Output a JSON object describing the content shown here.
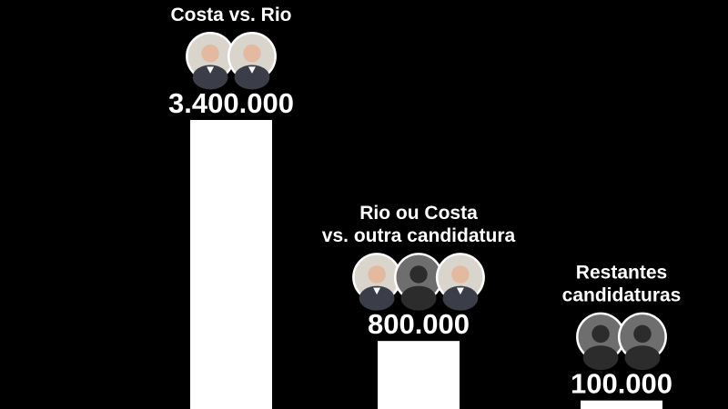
{
  "chart_data": {
    "type": "bar",
    "categories": [
      [
        "Costa vs. Rio"
      ],
      [
        "Rio ou Costa",
        "vs. outra candidatura"
      ],
      [
        "Restantes",
        "candidaturas"
      ]
    ],
    "values": [
      3400000,
      800000,
      100000
    ],
    "value_labels": [
      "3.400.000",
      "800.000",
      "100.000"
    ],
    "icons": [
      [
        "person-photo-icon",
        "person-photo-icon"
      ],
      [
        "person-photo-icon",
        "person-silhouette-icon",
        "person-photo-icon"
      ],
      [
        "person-silhouette-icon",
        "person-silhouette-icon"
      ]
    ],
    "colors": {
      "background": "#000000",
      "bar": "#ffffff",
      "text": "#ffffff",
      "silhouette": "#6e6e6e"
    }
  }
}
